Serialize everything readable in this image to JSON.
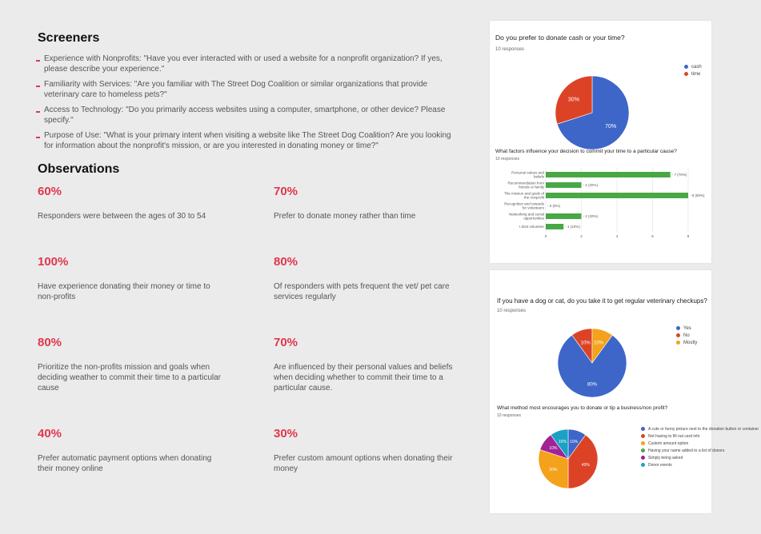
{
  "screeners": {
    "title": "Screeners",
    "items": [
      "Experience with Nonprofits: \"Have you ever interacted with or used a website for a nonprofit organization? If yes, please describe your experience.\"",
      "Familiarity with Services: \"Are you familiar with The Street Dog Coalition or similar organizations that provide veterinary care to homeless pets?\"",
      "Access to Technology: \"Do you primarily access websites using a computer, smartphone, or other device? Please specify.\"",
      "Purpose of Use: \"What is your primary intent when visiting a website like The Street Dog Coalition? Are you looking for information about the nonprofit's mission, or are you interested in donating money or time?\""
    ]
  },
  "observations": {
    "title": "Observations",
    "items": [
      {
        "pct": "60%",
        "desc": "Responders were between the ages of 30 to 54"
      },
      {
        "pct": "70%",
        "desc": "Prefer to donate money rather than time"
      },
      {
        "pct": "100%",
        "desc": "Have experience donating their money or time to non-profits"
      },
      {
        "pct": "80%",
        "desc": "Of responders with pets frequent the vet/ pet care services regularly"
      },
      {
        "pct": "80%",
        "desc": "Prioritize the non-profits mission and goals when deciding weather to commit their time to a particular cause"
      },
      {
        "pct": "70%",
        "desc": "Are influenced by their personal values and beliefs when deciding whether to commit their time to a particular cause."
      },
      {
        "pct": "40%",
        "desc": "Prefer automatic payment options when donating their money online"
      },
      {
        "pct": "30%",
        "desc": "Prefer custom amount options when donating their money"
      }
    ]
  },
  "chart_data": [
    {
      "type": "pie",
      "title": "Do you prefer to donate cash or your time?",
      "subtitle": "10 responses",
      "labels": [
        "cash",
        "time"
      ],
      "values": [
        70,
        30
      ],
      "colors": [
        "#3d66c8",
        "#dc4326"
      ],
      "slice_labels": [
        "70%",
        "30%"
      ],
      "legend": "right"
    },
    {
      "type": "bar",
      "orientation": "horizontal",
      "title": "What factors influence your decision to commit your time to a particular cause?",
      "subtitle": "10 responses",
      "categories": [
        "Personal values and beliefs",
        "Recommendation from friends or family",
        "The mission and goals of the nonprofit",
        "Recognition and rewards for volunteers",
        "Networking and social opportunities",
        "I dont volunteer"
      ],
      "values": [
        7,
        2,
        8,
        0,
        2,
        1
      ],
      "value_labels": [
        "7 (70%)",
        "2 (20%)",
        "8 (80%)",
        "0 (0%)",
        "2 (20%)",
        "1 (10%)"
      ],
      "xticks": [
        "0",
        "2",
        "4",
        "6",
        "8"
      ],
      "xlim": [
        0,
        8
      ],
      "color": "#48a846",
      "grid": true
    },
    {
      "type": "pie",
      "title": "If you have a dog or cat, do you take it to get regular veterinary checkups?",
      "subtitle": "10 responses",
      "labels": [
        "Yes",
        "No",
        "Mostly"
      ],
      "values": [
        80,
        10,
        10
      ],
      "colors": [
        "#3d66c8",
        "#dc4326",
        "#f4a11c"
      ],
      "slice_labels": [
        "80%",
        "10%",
        "10%"
      ],
      "legend": "right"
    },
    {
      "type": "pie",
      "title": "What method most encourages you to donate or tip a business/non profit?",
      "subtitle": "10 responses",
      "labels": [
        "A cute or funny picture next to the donation button or container",
        "Not having to fill out card info",
        "Custom amount option",
        "Having your name added to a list of donors",
        "Simply being asked",
        "Donor events"
      ],
      "values": [
        10,
        40,
        30,
        0,
        10,
        10
      ],
      "colors": [
        "#3d66c8",
        "#dc4326",
        "#f4a11c",
        "#4ca348",
        "#a12296",
        "#1aa2c5"
      ],
      "slice_labels": [
        "10%",
        "40%",
        "30%",
        "",
        "10%",
        "10%"
      ],
      "legend": "right"
    }
  ]
}
